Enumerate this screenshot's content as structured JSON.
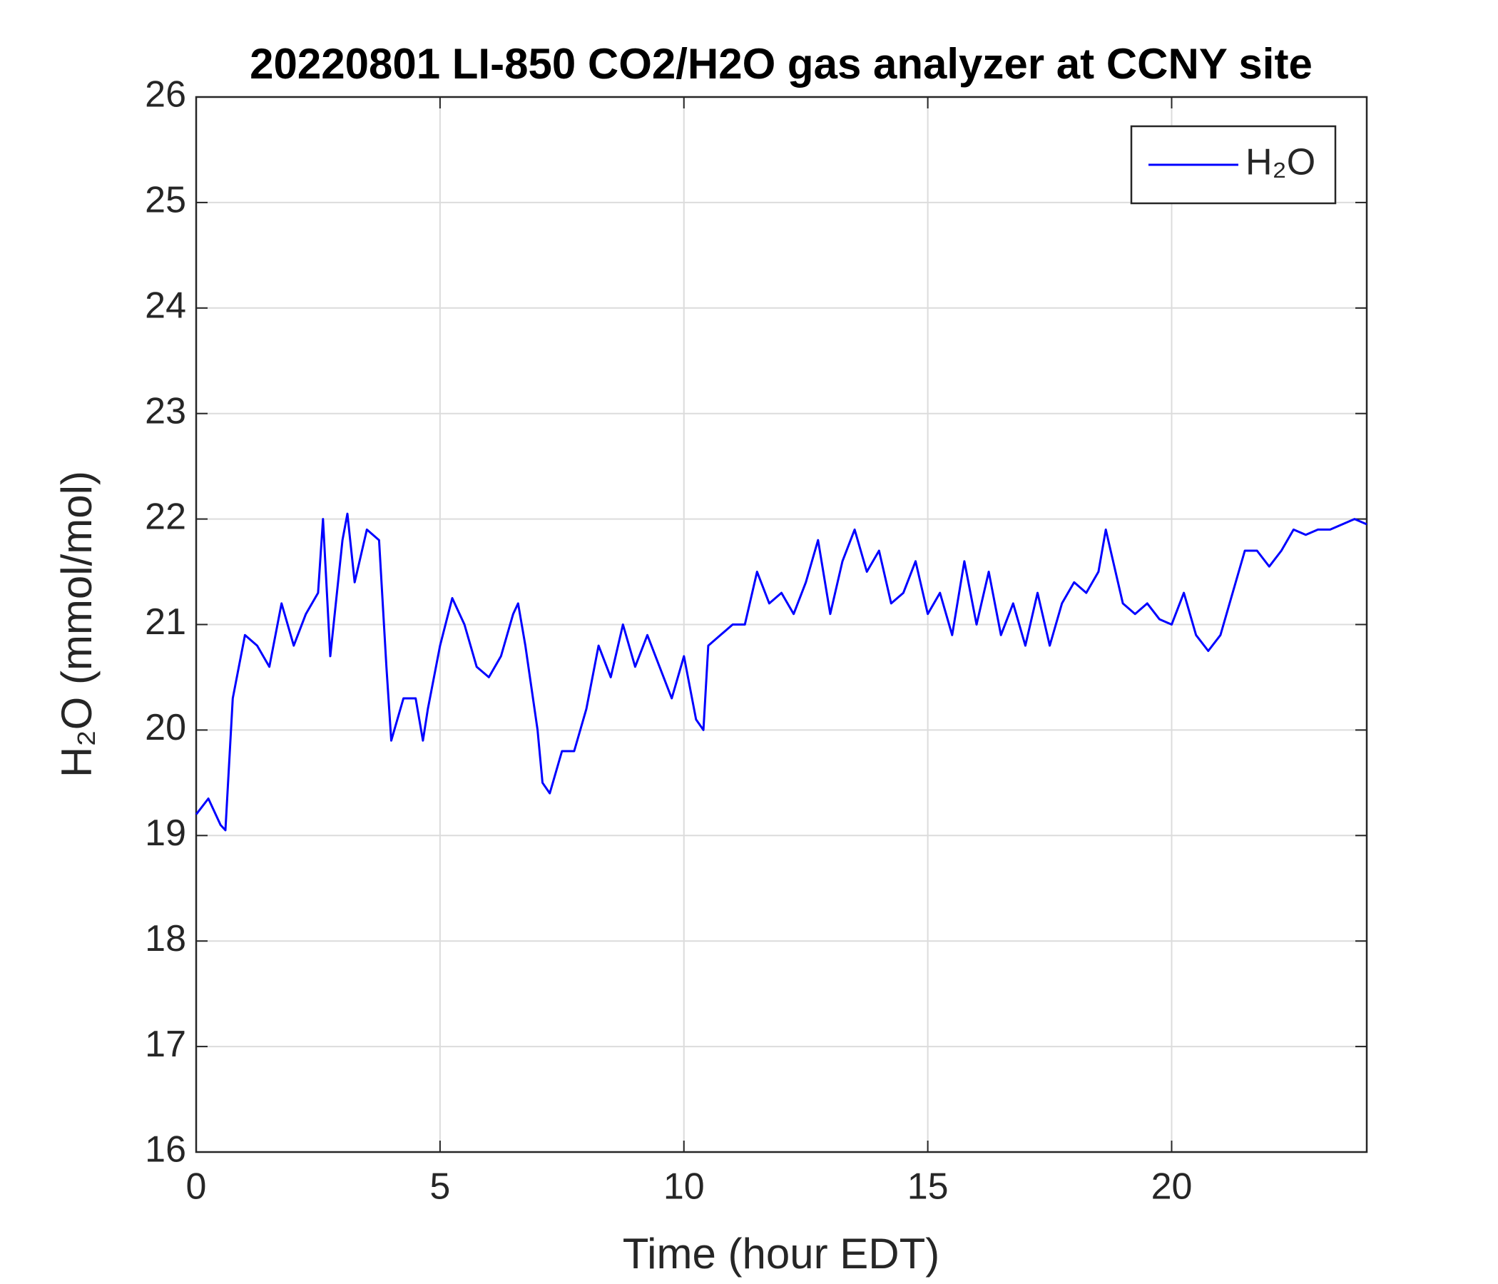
{
  "chart_data": {
    "type": "line",
    "title": "20220801 LI-850 CO2/H2O gas analyzer at CCNY site",
    "x_label": "Time (hour EDT)",
    "y_label": "H₂O (mmol/mol)",
    "x": [
      0,
      0.25,
      0.5,
      0.6,
      0.75,
      1.0,
      1.25,
      1.5,
      1.75,
      2.0,
      2.25,
      2.5,
      2.6,
      2.75,
      3.0,
      3.1,
      3.25,
      3.5,
      3.75,
      3.9,
      4.0,
      4.25,
      4.5,
      4.65,
      4.75,
      5.0,
      5.25,
      5.5,
      5.75,
      6.0,
      6.25,
      6.5,
      6.6,
      6.75,
      7.0,
      7.1,
      7.25,
      7.5,
      7.75,
      8.0,
      8.25,
      8.5,
      8.75,
      9.0,
      9.25,
      9.5,
      9.75,
      10.0,
      10.25,
      10.4,
      10.5,
      10.75,
      11.0,
      11.25,
      11.5,
      11.75,
      12.0,
      12.25,
      12.5,
      12.75,
      13.0,
      13.25,
      13.5,
      13.75,
      14.0,
      14.25,
      14.5,
      14.75,
      15.0,
      15.25,
      15.5,
      15.75,
      16.0,
      16.25,
      16.5,
      16.75,
      17.0,
      17.25,
      17.5,
      17.75,
      18.0,
      18.25,
      18.5,
      18.65,
      18.75,
      19.0,
      19.25,
      19.5,
      19.75,
      20.0,
      20.25,
      20.5,
      20.75,
      21.0,
      21.25,
      21.5,
      21.75,
      22.0,
      22.25,
      22.5,
      22.75,
      23.0,
      23.25,
      23.5,
      23.75,
      24.0
    ],
    "series": [
      {
        "name": "H₂O",
        "color": "#0000ff",
        "values": [
          19.2,
          19.35,
          19.1,
          19.05,
          20.3,
          20.9,
          20.8,
          20.6,
          21.2,
          20.8,
          21.1,
          21.3,
          22.0,
          20.7,
          21.8,
          22.05,
          21.4,
          21.9,
          21.8,
          20.6,
          19.9,
          20.3,
          20.3,
          19.9,
          20.2,
          20.8,
          21.25,
          21.0,
          20.6,
          20.5,
          20.7,
          21.1,
          21.2,
          20.8,
          20.0,
          19.5,
          19.4,
          19.8,
          19.8,
          20.2,
          20.8,
          20.5,
          21.0,
          20.6,
          20.9,
          20.6,
          20.3,
          20.7,
          20.1,
          20.0,
          20.8,
          20.9,
          21.0,
          21.0,
          21.5,
          21.2,
          21.3,
          21.1,
          21.4,
          21.8,
          21.1,
          21.6,
          21.9,
          21.5,
          21.7,
          21.2,
          21.3,
          21.6,
          21.1,
          21.3,
          20.9,
          21.6,
          21.0,
          21.5,
          20.9,
          21.2,
          20.8,
          21.3,
          20.8,
          21.2,
          21.4,
          21.3,
          21.5,
          21.9,
          21.7,
          21.2,
          21.1,
          21.2,
          21.05,
          21.0,
          21.3,
          20.9,
          20.75,
          20.9,
          21.3,
          21.7,
          21.7,
          21.55,
          21.7,
          21.9,
          21.85,
          21.9,
          21.9,
          21.95,
          22.0,
          21.95
        ]
      }
    ],
    "xlim": [
      0,
      24
    ],
    "xticks": [
      0,
      5,
      10,
      15,
      20
    ],
    "ylim": [
      16,
      26
    ],
    "yticks": [
      16,
      17,
      18,
      19,
      20,
      21,
      22,
      23,
      24,
      25,
      26
    ],
    "grid": true,
    "legend": "upper right"
  }
}
